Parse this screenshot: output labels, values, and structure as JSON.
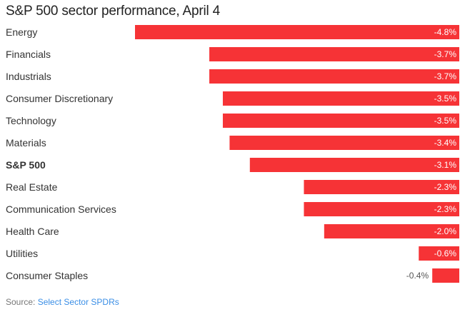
{
  "chart_data": {
    "type": "bar",
    "orientation": "horizontal",
    "title": "S&P 500 sector performance, April 4",
    "categories": [
      "Energy",
      "Financials",
      "Industrials",
      "Consumer Discretionary",
      "Technology",
      "Materials",
      "S&P 500",
      "Real Estate",
      "Communication Services",
      "Health Care",
      "Utilities",
      "Consumer Staples"
    ],
    "values": [
      -4.8,
      -3.7,
      -3.7,
      -3.5,
      -3.5,
      -3.4,
      -3.1,
      -2.3,
      -2.3,
      -2.0,
      -0.6,
      -0.4
    ],
    "value_labels": [
      "-4.8%",
      "-3.7%",
      "-3.7%",
      "-3.5%",
      "-3.5%",
      "-3.4%",
      "-3.1%",
      "-2.3%",
      "-2.3%",
      "-2.0%",
      "-0.6%",
      "-0.4%"
    ],
    "highlight_category": "S&P 500",
    "bar_color": "#f63336",
    "xlim": [
      -4.8,
      0
    ],
    "grid": false,
    "legend": "none"
  },
  "source": {
    "prefix": "Source: ",
    "name": "Select Sector SPDRs"
  }
}
